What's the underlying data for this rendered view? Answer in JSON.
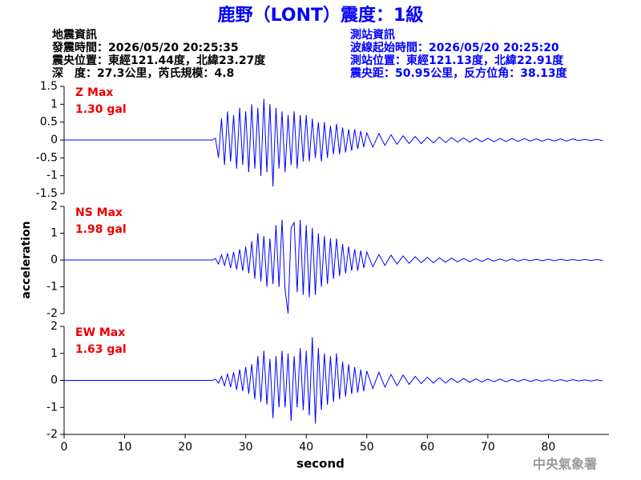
{
  "header": {
    "title": "鹿野（LONT）震度：1級",
    "left_lines": [
      "地震資訊",
      "發震時間：2026/05/20 20:25:35",
      "震央位置：東經121.44度，北緯23.27度",
      "深　度：27.3公里，芮氏規模：4.8"
    ],
    "right_lines": [
      "測站資訊",
      "波線起始時間：2026/05/20 20:25:20",
      "測站位置：東經121.13度，北緯22.91度",
      "震央距：50.95公里，反方位角：38.13度"
    ]
  },
  "footer": "中央氣象署",
  "chart_data": [
    {
      "type": "line",
      "annotations": [
        "Z Max",
        "1.30 gal"
      ],
      "color": "#0000ff",
      "xlim": [
        0,
        90
      ],
      "ylim": [
        -1.5,
        1.5
      ],
      "yticks": [
        -1.5,
        -1,
        -0.5,
        0,
        0.5,
        1,
        1.5
      ],
      "x": [
        0,
        24.5,
        25,
        25.5,
        26,
        26.5,
        27,
        27.5,
        28,
        28.5,
        29,
        29.5,
        30,
        30.5,
        31,
        31.5,
        32,
        32.5,
        33,
        33.5,
        34,
        34.5,
        35,
        35.5,
        36,
        36.5,
        37,
        37.5,
        38,
        38.5,
        39,
        39.5,
        40,
        40.5,
        41,
        41.5,
        42,
        42.5,
        43,
        43.5,
        44,
        44.5,
        45,
        45.5,
        46,
        46.5,
        47,
        47.5,
        48,
        48.5,
        49,
        49.5,
        50,
        51,
        52,
        53,
        54,
        55,
        56,
        57,
        58,
        59,
        60,
        61,
        62,
        63,
        64,
        65,
        66,
        67,
        68,
        69,
        70,
        71,
        72,
        73,
        74,
        75,
        76,
        77,
        78,
        79,
        80,
        81,
        82,
        83,
        84,
        85,
        86,
        87,
        88,
        89
      ],
      "values": [
        0,
        0,
        0.05,
        -0.5,
        0.6,
        -0.7,
        0.8,
        -0.6,
        0.7,
        -0.8,
        0.9,
        -0.7,
        0.8,
        -0.9,
        1.0,
        -0.8,
        0.9,
        -1.0,
        1.15,
        -0.9,
        1.0,
        -1.3,
        0.9,
        -0.8,
        0.8,
        -0.9,
        0.7,
        -0.7,
        0.8,
        -0.8,
        0.7,
        -0.6,
        0.7,
        -0.6,
        0.6,
        -0.5,
        0.5,
        -0.6,
        0.5,
        -0.5,
        0.4,
        -0.4,
        0.45,
        -0.4,
        0.35,
        -0.35,
        0.3,
        -0.3,
        0.3,
        -0.25,
        0.25,
        -0.2,
        0.2,
        -0.2,
        0.18,
        -0.15,
        0.15,
        -0.12,
        0.12,
        -0.1,
        0.1,
        -0.1,
        0.08,
        -0.08,
        0.08,
        -0.07,
        0.07,
        -0.06,
        0.06,
        -0.06,
        0.05,
        -0.05,
        0.05,
        -0.05,
        0.04,
        -0.04,
        0.04,
        -0.04,
        0.04,
        -0.03,
        0.03,
        -0.03,
        0.03,
        -0.03,
        0.03,
        -0.03,
        0.03,
        -0.02,
        0.02,
        -0.02,
        0.02,
        -0.02
      ]
    },
    {
      "type": "line",
      "annotations": [
        "NS Max",
        "1.98 gal"
      ],
      "color": "#0000ff",
      "y_label": "acceleration",
      "xlim": [
        0,
        90
      ],
      "ylim": [
        -2,
        2
      ],
      "yticks": [
        -2,
        -1,
        0,
        1,
        2
      ],
      "x": [
        0,
        24.5,
        25,
        25.5,
        26,
        26.5,
        27,
        27.5,
        28,
        28.5,
        29,
        29.5,
        30,
        30.5,
        31,
        31.5,
        32,
        32.5,
        33,
        33.5,
        34,
        34.5,
        35,
        35.5,
        36,
        36.5,
        37,
        37.5,
        38,
        38.5,
        39,
        39.5,
        40,
        40.5,
        41,
        41.5,
        42,
        42.5,
        43,
        43.5,
        44,
        44.5,
        45,
        45.5,
        46,
        46.5,
        47,
        47.5,
        48,
        48.5,
        49,
        49.5,
        50,
        51,
        52,
        53,
        54,
        55,
        56,
        57,
        58,
        59,
        60,
        61,
        62,
        63,
        64,
        65,
        66,
        67,
        68,
        69,
        70,
        71,
        72,
        73,
        74,
        75,
        76,
        77,
        78,
        79,
        80,
        81,
        82,
        83,
        84,
        85,
        86,
        87,
        88,
        89
      ],
      "values": [
        0,
        0,
        0.05,
        -0.15,
        0.2,
        -0.2,
        0.25,
        -0.3,
        0.3,
        -0.35,
        0.4,
        -0.4,
        0.5,
        -0.5,
        0.7,
        -0.7,
        1.0,
        -0.8,
        0.9,
        -1.0,
        0.8,
        -0.9,
        1.3,
        -1.0,
        1.5,
        -1.1,
        -2.0,
        1.2,
        1.4,
        -1.2,
        1.5,
        -1.3,
        1.3,
        -1.4,
        1.2,
        -1.3,
        1.0,
        -1.0,
        0.9,
        -0.9,
        0.8,
        -0.7,
        0.8,
        -0.6,
        0.6,
        -0.5,
        0.5,
        -0.4,
        0.4,
        -0.4,
        0.35,
        -0.3,
        0.3,
        -0.25,
        0.2,
        -0.2,
        0.18,
        -0.15,
        0.15,
        -0.12,
        0.12,
        -0.1,
        0.1,
        -0.1,
        0.08,
        -0.08,
        0.07,
        -0.07,
        0.06,
        -0.06,
        0.05,
        -0.05,
        0.05,
        -0.04,
        0.04,
        -0.04,
        0.04,
        -0.04,
        0.03,
        -0.03,
        0.03,
        -0.03,
        0.03,
        -0.03,
        0.03,
        -0.02,
        0.02,
        -0.02,
        0.02,
        -0.02,
        0.02,
        -0.02
      ]
    },
    {
      "type": "line",
      "annotations": [
        "EW Max",
        "1.63 gal"
      ],
      "color": "#0000ff",
      "x_label": "second",
      "xlim": [
        0,
        90
      ],
      "xticks": [
        0,
        10,
        20,
        30,
        40,
        50,
        60,
        70,
        80
      ],
      "ylim": [
        -2,
        2
      ],
      "yticks": [
        -2,
        -1,
        0,
        1,
        2
      ],
      "x": [
        0,
        24.5,
        25,
        25.5,
        26,
        26.5,
        27,
        27.5,
        28,
        28.5,
        29,
        29.5,
        30,
        30.5,
        31,
        31.5,
        32,
        32.5,
        33,
        33.5,
        34,
        34.5,
        35,
        35.5,
        36,
        36.5,
        37,
        37.5,
        38,
        38.5,
        39,
        39.5,
        40,
        40.5,
        41,
        41.5,
        42,
        42.5,
        43,
        43.5,
        44,
        44.5,
        45,
        45.5,
        46,
        46.5,
        47,
        47.5,
        48,
        48.5,
        49,
        49.5,
        50,
        51,
        52,
        53,
        54,
        55,
        56,
        57,
        58,
        59,
        60,
        61,
        62,
        63,
        64,
        65,
        66,
        67,
        68,
        69,
        70,
        71,
        72,
        73,
        74,
        75,
        76,
        77,
        78,
        79,
        80,
        81,
        82,
        83,
        84,
        85,
        86,
        87,
        88,
        89
      ],
      "values": [
        0,
        0,
        0.05,
        -0.1,
        0.15,
        -0.2,
        0.25,
        -0.25,
        0.3,
        -0.35,
        0.4,
        -0.4,
        0.5,
        -0.5,
        0.6,
        -0.7,
        0.9,
        -0.8,
        1.1,
        -0.9,
        0.8,
        -1.4,
        0.9,
        -1.0,
        1.1,
        -1.0,
        1.0,
        -1.5,
        0.9,
        -1.0,
        1.2,
        -1.1,
        1.1,
        -1.3,
        1.6,
        -1.6,
        1.2,
        -1.1,
        1.0,
        -0.9,
        0.9,
        -0.8,
        1.0,
        -0.7,
        0.7,
        -0.6,
        0.6,
        -0.5,
        0.5,
        -0.45,
        0.4,
        -0.4,
        0.35,
        -0.3,
        0.3,
        -0.25,
        0.22,
        -0.2,
        0.2,
        -0.15,
        0.15,
        -0.12,
        0.12,
        -0.1,
        0.1,
        -0.1,
        0.08,
        -0.08,
        0.07,
        -0.07,
        0.06,
        -0.06,
        0.05,
        -0.05,
        0.05,
        -0.05,
        0.04,
        -0.04,
        0.04,
        -0.04,
        0.03,
        -0.03,
        0.03,
        -0.03,
        0.03,
        -0.03,
        0.03,
        -0.02,
        0.02,
        -0.02,
        0.02,
        -0.02
      ]
    }
  ]
}
